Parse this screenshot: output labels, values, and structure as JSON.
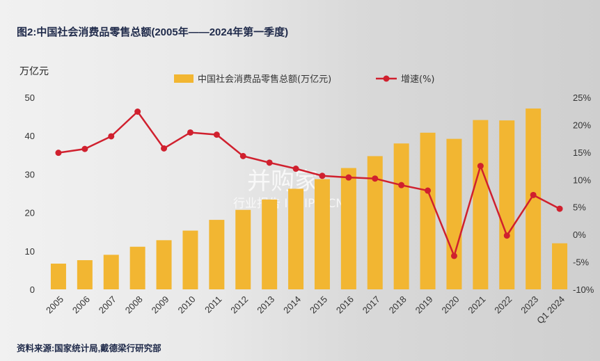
{
  "title": "图2:中国社会消费品零售总额(2005年——2024年第一季度)",
  "unit_label": "万亿元",
  "source": "资料来源:国家统计局,戴德梁行研究部",
  "watermark": {
    "brand": "并购家",
    "sub": "行业报告 IPOIPO.CN"
  },
  "colors": {
    "bar": "#f2b632",
    "line": "#d0202e",
    "title": "#1f2a4a"
  },
  "chart_data": {
    "type": "bar",
    "categories": [
      "2005",
      "2006",
      "2007",
      "2008",
      "2009",
      "2010",
      "2011",
      "2012",
      "2013",
      "2014",
      "2015",
      "2016",
      "2017",
      "2018",
      "2019",
      "2020",
      "2021",
      "2022",
      "2023",
      "Q1 2024"
    ],
    "series": [
      {
        "name": "中国社会消费品零售总额(万亿元)",
        "type": "bar",
        "axis": "left",
        "values": [
          6.7,
          7.6,
          9.0,
          11.1,
          12.8,
          15.3,
          18.1,
          20.7,
          23.4,
          26.2,
          28.7,
          31.6,
          34.7,
          38.0,
          40.8,
          39.2,
          44.1,
          44.0,
          47.1,
          12.0
        ]
      },
      {
        "name": "增速(%)",
        "type": "line",
        "axis": "right",
        "values": [
          14.9,
          15.6,
          17.9,
          22.4,
          15.7,
          18.6,
          18.2,
          14.3,
          13.1,
          12.0,
          10.7,
          10.4,
          10.2,
          9.0,
          8.0,
          -3.9,
          12.5,
          -0.2,
          7.2,
          4.7
        ]
      }
    ],
    "ylim_left": [
      0,
      50
    ],
    "yticks_left": [
      "0",
      "10",
      "20",
      "30",
      "40",
      "50"
    ],
    "ylim_right": [
      -10,
      25
    ],
    "yticks_right": [
      "-10%",
      "-5%",
      "0%",
      "5%",
      "10%",
      "15%",
      "20%",
      "25%"
    ],
    "legend_position": "top-center",
    "grid": false
  }
}
